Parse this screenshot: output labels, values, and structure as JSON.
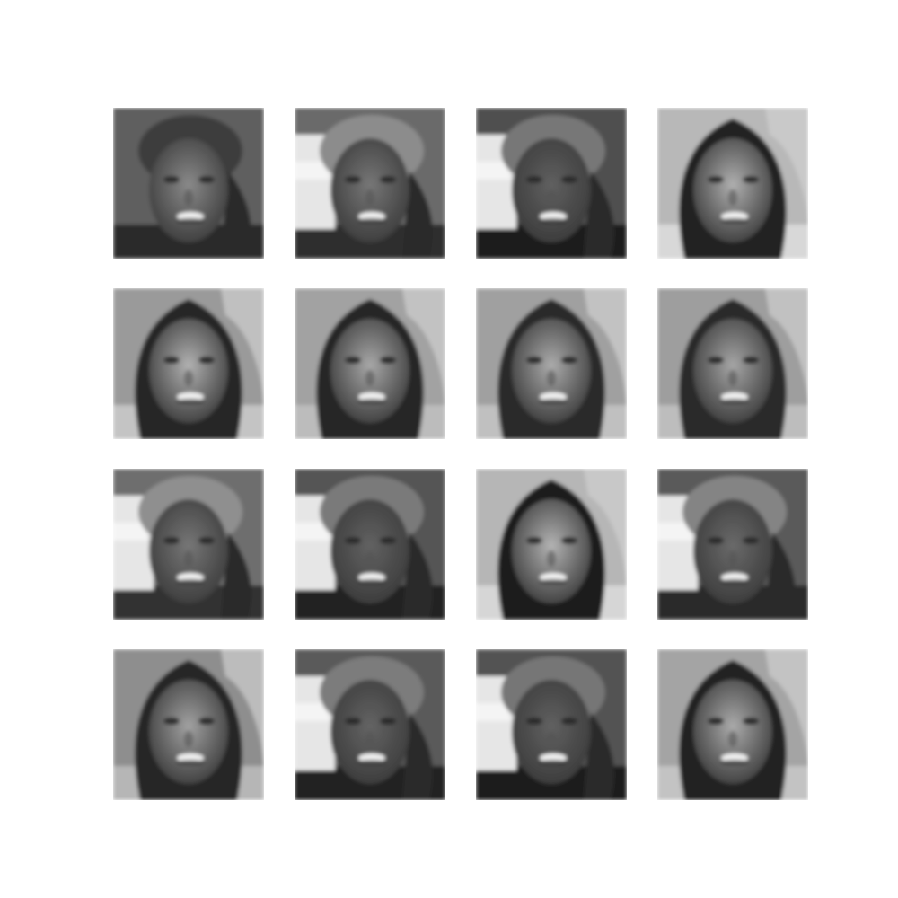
{
  "figure": {
    "rows": 4,
    "cols": 4,
    "tiles": [
      {
        "variant": "shorthair",
        "bg": "#5e5e5e",
        "hair": "#3c3c3c",
        "face": "#8a8a8a",
        "left_blob": false,
        "lower": "#2a2a2a"
      },
      {
        "variant": "shorthair",
        "bg": "#6a6a6a",
        "hair": "#8c8c8c",
        "face": "#777777",
        "left_blob": true,
        "lower": "#2f2f2f"
      },
      {
        "variant": "shorthair",
        "bg": "#505050",
        "hair": "#777777",
        "face": "#606060",
        "left_blob": true,
        "lower": "#1f1f1f"
      },
      {
        "variant": "longhair",
        "bg": "#b8b8b8",
        "hair": "#222222",
        "face": "#b0b0b0",
        "left_blob": false,
        "lower": "#d8d8d8"
      },
      {
        "variant": "longhair",
        "bg": "#9a9a9a",
        "hair": "#252525",
        "face": "#b2b2b2",
        "left_blob": false,
        "lower": "#c4c4c4"
      },
      {
        "variant": "longhair",
        "bg": "#a2a2a2",
        "hair": "#262626",
        "face": "#a8a8a8",
        "left_blob": false,
        "lower": "#bcbcbc"
      },
      {
        "variant": "longhair",
        "bg": "#a0a0a0",
        "hair": "#2a2a2a",
        "face": "#acacac",
        "left_blob": false,
        "lower": "#c0c0c0"
      },
      {
        "variant": "longhair",
        "bg": "#9e9e9e",
        "hair": "#2a2a2a",
        "face": "#a6a6a6",
        "left_blob": false,
        "lower": "#bdbdbd"
      },
      {
        "variant": "shorthair",
        "bg": "#6e6e6e",
        "hair": "#8f8f8f",
        "face": "#777777",
        "left_blob": true,
        "lower": "#303030"
      },
      {
        "variant": "shorthair",
        "bg": "#545454",
        "hair": "#7a7a7a",
        "face": "#626262",
        "left_blob": true,
        "lower": "#242424"
      },
      {
        "variant": "longhair",
        "bg": "#b6b6b6",
        "hair": "#1f1f1f",
        "face": "#b4b4b4",
        "left_blob": false,
        "lower": "#d6d6d6"
      },
      {
        "variant": "shorthair",
        "bg": "#5a5a5a",
        "hair": "#848484",
        "face": "#6a6a6a",
        "left_blob": true,
        "lower": "#2a2a2a"
      },
      {
        "variant": "longhair",
        "bg": "#8e8e8e",
        "hair": "#272727",
        "face": "#a2a2a2",
        "left_blob": false,
        "lower": "#b6b6b6"
      },
      {
        "variant": "shorthair",
        "bg": "#5a5a5a",
        "hair": "#7c7c7c",
        "face": "#646464",
        "left_blob": true,
        "lower": "#232323"
      },
      {
        "variant": "shorthair",
        "bg": "#525252",
        "hair": "#767676",
        "face": "#616161",
        "left_blob": true,
        "lower": "#1f1f1f"
      },
      {
        "variant": "longhair",
        "bg": "#a4a4a4",
        "hair": "#242424",
        "face": "#ababab",
        "left_blob": false,
        "lower": "#c3c3c3"
      }
    ]
  }
}
